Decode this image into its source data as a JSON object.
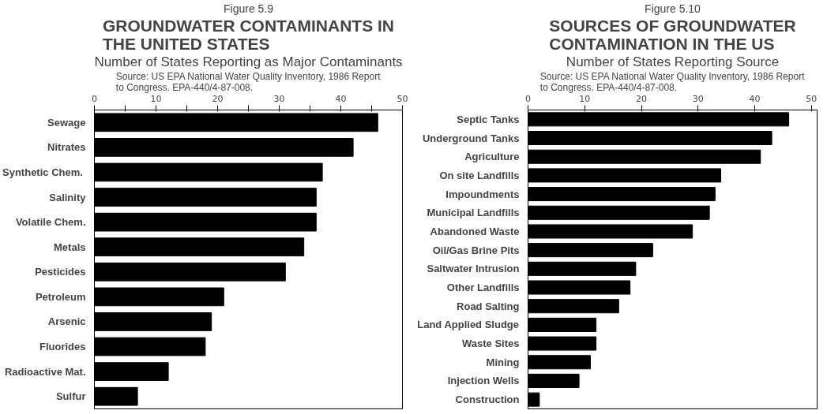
{
  "chart_data": [
    {
      "type": "bar",
      "orientation": "horizontal",
      "title": "GROUNDWATER CONTAMINANTS IN THE UNITED STATES",
      "subtitle": "Number of States Reporting as Major Contaminants",
      "annotations": [
        "Figure 5.9",
        "Source: US EPA National Water Quality Inventory, 1986 Report to Congress. EPA-440/4-87-008."
      ],
      "categories": [
        "Sewage",
        "Nitrates",
        "Synthetic  Chem.",
        "Salinity",
        "Volatile Chem.",
        "Metals",
        "Pesticides",
        "Petroleum",
        "Arsenic",
        "Fluorides",
        "Radioactive Mat.",
        "Sulfur"
      ],
      "values": [
        46,
        42,
        37,
        36,
        36,
        34,
        31,
        21,
        19,
        18,
        12,
        7
      ],
      "color": "#000000",
      "xlim": [
        0,
        50
      ],
      "xticks": [
        0,
        {
          "value": 5,
          "label": null
        },
        10,
        {
          "value": 15,
          "label": null
        },
        20,
        {
          "value": 25,
          "label": null
        },
        30,
        {
          "value": 35,
          "label": null
        },
        40,
        {
          "value": 45,
          "label": null
        },
        50
      ],
      "grid": false
    },
    {
      "type": "bar",
      "orientation": "horizontal",
      "title": "SOURCES OF GROUNDWATER CONTAMINATION IN THE US",
      "subtitle": "Number of States Reporting Source",
      "annotations": [
        "Figure 5.10",
        "Source: US EPA National Water Quality Inventory, 1986 Report to Congress. EPA-440/4-87-008."
      ],
      "categories": [
        "Septic Tanks",
        "Underground Tanks",
        "Agriculture",
        "On site Landfills",
        "Impoundments",
        "Municipal Landfills",
        "Abandoned Waste",
        "Oil/Gas Brine Pits",
        "Saltwater Intrusion",
        "Other Landfills",
        "Road Salting",
        "Land Applied Sludge",
        "Waste Sites",
        "Mining",
        "Injection Wells",
        "Construction"
      ],
      "values": [
        46,
        43,
        41,
        34,
        33,
        32,
        29,
        22,
        19,
        18,
        16,
        12,
        12,
        11,
        9,
        2
      ],
      "color": "#000000",
      "xlim": [
        0,
        51
      ],
      "xticks": [
        0,
        10,
        20,
        30,
        40,
        50
      ],
      "grid": false
    }
  ]
}
